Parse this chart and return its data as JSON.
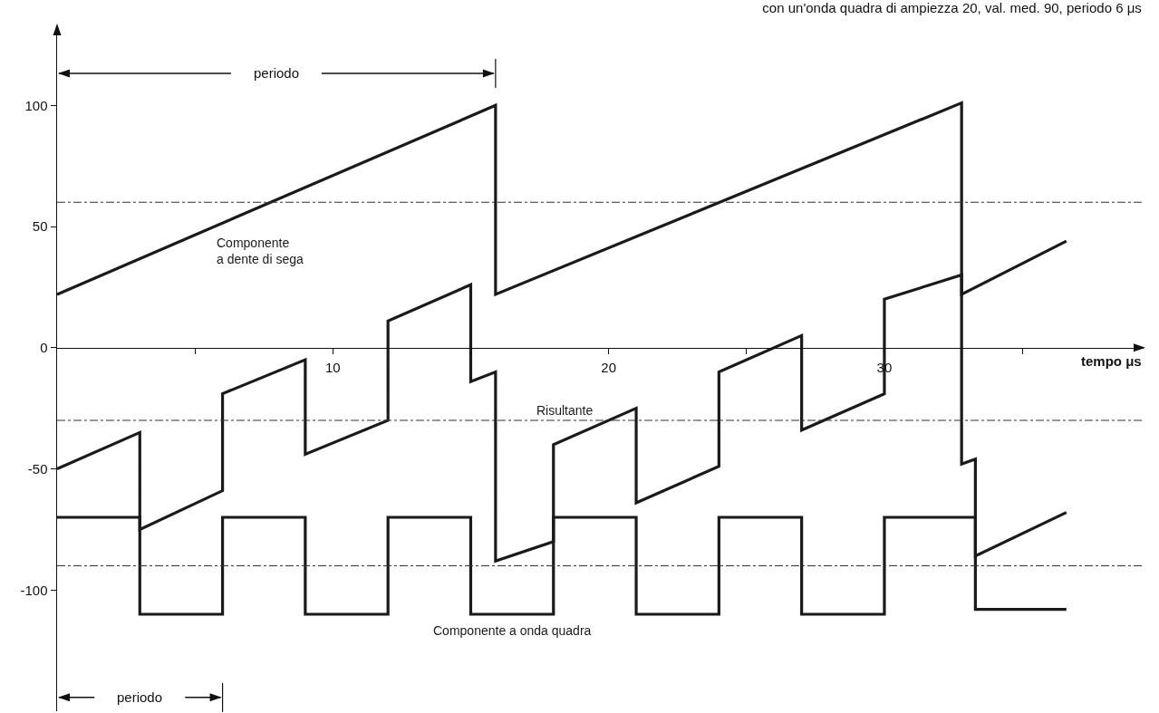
{
  "chart_data": {
    "type": "line",
    "title": "con un'onda quadra di ampiezza 20, val. med. 90, periodo 6 μs",
    "xlabel": "tempo μs",
    "series": [
      {
        "name": "Componente a dente di sega",
        "color": "#1a1a1a",
        "x": [
          0,
          15.9,
          15.9,
          32.8,
          32.8,
          36.6
        ],
        "values": [
          22,
          100,
          22,
          101,
          22,
          44
        ]
      },
      {
        "name": "Risultante",
        "color": "#1a1a1a",
        "x": [
          0,
          3,
          3,
          6,
          6,
          9,
          9,
          12,
          12,
          15,
          15,
          15.9,
          15.9,
          18,
          18,
          21,
          21,
          24,
          24,
          27,
          27,
          30,
          30,
          32.8,
          32.8,
          33.3,
          33.3,
          36.6
        ],
        "values": [
          -50,
          -35,
          -75,
          -59,
          -19,
          -5,
          -44,
          -30,
          11,
          26,
          -14,
          -10,
          -88,
          -80,
          -40,
          -25,
          -64,
          -49,
          -10,
          5,
          -34,
          -19,
          20,
          30,
          -48,
          -46,
          -86,
          -68
        ]
      },
      {
        "name": "Componente a onda quadra",
        "color": "#1a1a1a",
        "x": [
          0,
          3,
          3,
          6,
          6,
          9,
          9,
          12,
          12,
          15,
          15,
          18,
          18,
          21,
          21,
          24,
          24,
          27,
          27,
          30,
          30,
          33.3,
          33.3,
          36.6
        ],
        "values": [
          -70,
          -70,
          -110,
          -110,
          -70,
          -70,
          -110,
          -110,
          -70,
          -70,
          -110,
          -110,
          -70,
          -70,
          -110,
          -110,
          -70,
          -70,
          -110,
          -110,
          -70,
          -70,
          -108,
          -108
        ]
      }
    ],
    "annotations": [
      "periodo",
      "periodo"
    ],
    "xlim": [
      0,
      39.4
    ],
    "ylim": [
      -150,
      133
    ],
    "xticks": [
      {
        "value": 5,
        "label": null
      },
      10,
      {
        "value": 15,
        "label": null
      },
      20,
      {
        "value": 25,
        "label": null
      },
      30,
      {
        "value": 35,
        "label": null
      }
    ],
    "yticks": [
      -100,
      -50,
      0,
      50,
      100
    ],
    "ref_lines": [
      {
        "axis": "y",
        "value": 60,
        "line_style": "dashdot",
        "color": "#333333"
      },
      {
        "axis": "y",
        "value": -30,
        "line_style": "dashdot",
        "color": "#333333"
      },
      {
        "axis": "y",
        "value": -90,
        "line_style": "dashdot",
        "color": "#333333"
      }
    ],
    "legend": false,
    "grid": false,
    "marker": "none",
    "line_style": "solid"
  }
}
